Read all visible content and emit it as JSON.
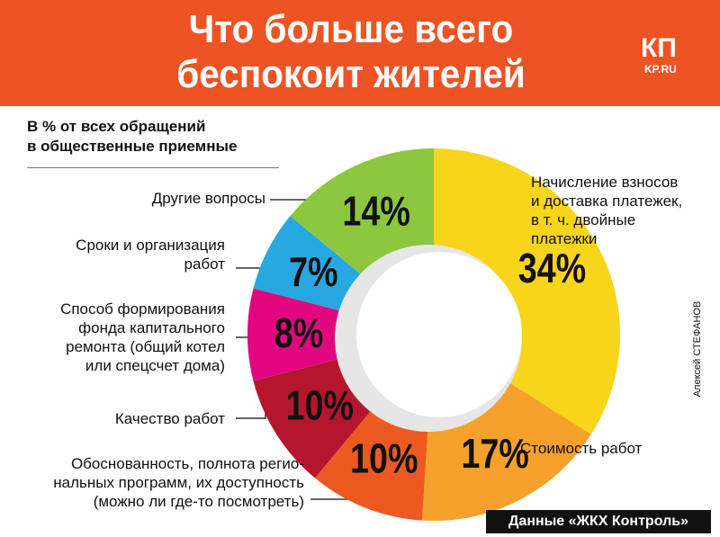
{
  "chart_data": {
    "type": "pie",
    "title": "Что больше всего\nбеспокоит жителей",
    "subtitle": "В % от всех обращений\nв общественные приемные",
    "categories": [
      "Начисление взносов\nи доставка платежек,\nв т. ч. двойные\nплатежки",
      "Стоимость работ",
      "Обоснованность, полнота регио-\nнальных программ, их доступность\n(можно ли где-то посмотреть)",
      "Качество работ",
      "Способ формирования\nфонда капитального\nремонта (общий котел\nили спецсчет дома)",
      "Сроки и организация\nработ",
      "Другие вопросы"
    ],
    "values": [
      34,
      17,
      10,
      10,
      8,
      7,
      14
    ],
    "value_labels": [
      "34%",
      "17%",
      "10%",
      "10%",
      "8%",
      "7%",
      "14%"
    ],
    "colors": [
      "#f8d51a",
      "#f5a12c",
      "#ec5a22",
      "#b5162e",
      "#e3077f",
      "#28a8e0",
      "#8dc63f"
    ],
    "source": "Данные «ЖКХ Контроль»",
    "credit": "Алексей СТЕФАНОВ"
  },
  "logo": {
    "text": "КП",
    "site": "KP.RU"
  }
}
